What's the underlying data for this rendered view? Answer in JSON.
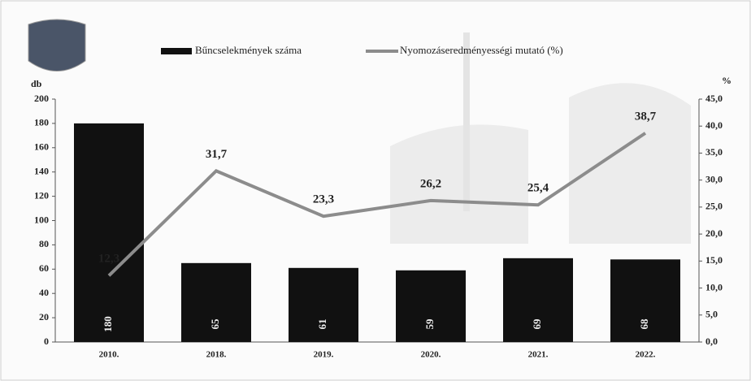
{
  "chart_data": {
    "type": "bar",
    "categories": [
      "2010.",
      "2018.",
      "2019.",
      "2020.",
      "2021.",
      "2022."
    ],
    "series": [
      {
        "name": "Bűncselekmények száma",
        "color": "#111111",
        "values": [
          180,
          65,
          61,
          59,
          69,
          68
        ]
      },
      {
        "name": "Nyomozáseredményességi mutató (%)",
        "type": "line",
        "axis": "y2",
        "color": "#8c8c8c",
        "values": [
          12.3,
          31.7,
          23.3,
          26.2,
          25.4,
          38.7
        ],
        "value_labels": [
          "12,3",
          "31,7",
          "23,3",
          "26,2",
          "25,4",
          "38,7"
        ]
      }
    ],
    "ylabel": "db",
    "y2label": "%",
    "ylim": [
      0,
      200
    ],
    "yticks": [
      0,
      20,
      40,
      60,
      80,
      100,
      120,
      140,
      160,
      180,
      200
    ],
    "y2lim": [
      0,
      45
    ],
    "y2ticks": [
      {
        "value": 0,
        "label": "0,0"
      },
      {
        "value": 5,
        "label": "5,0"
      },
      {
        "value": 10,
        "label": "10,0"
      },
      {
        "value": 15,
        "label": "15,0"
      },
      {
        "value": 20,
        "label": "20,0"
      },
      {
        "value": 25,
        "label": "25,0"
      },
      {
        "value": 30,
        "label": "30,0"
      },
      {
        "value": 35,
        "label": "35,0"
      },
      {
        "value": 40,
        "label": "40,0"
      },
      {
        "value": 45,
        "label": "45,0"
      }
    ],
    "grid": false,
    "legend": "top"
  }
}
